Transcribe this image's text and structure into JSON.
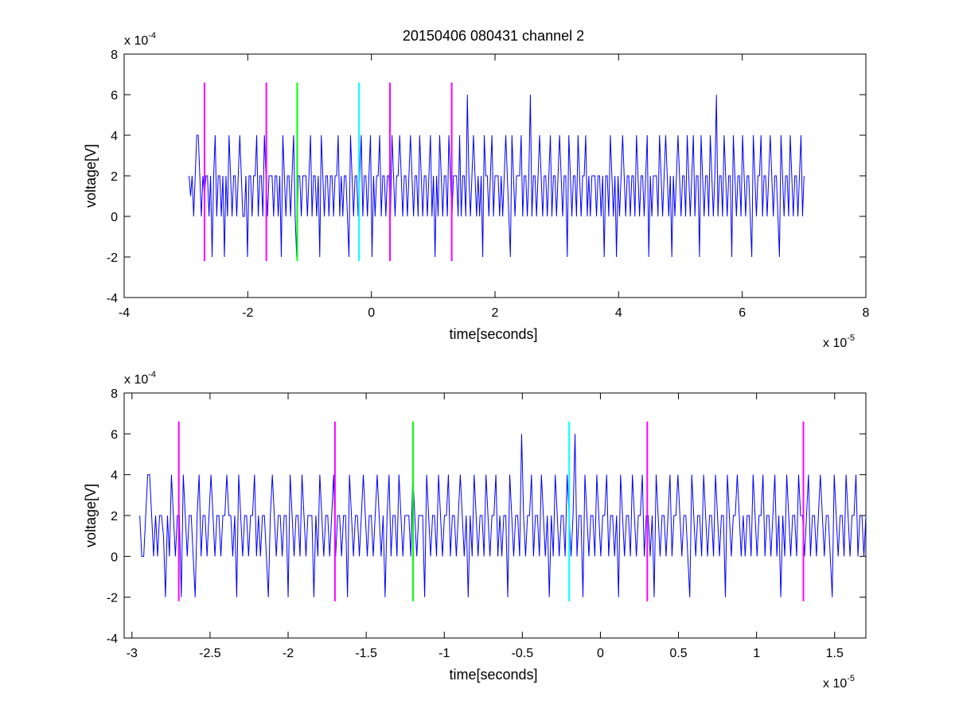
{
  "figure": {
    "title": "20150406 080431 channel 2",
    "background": "#ffffff"
  },
  "chart_data": [
    {
      "type": "line",
      "title": "20150406 080431 channel 2",
      "xlabel": "time[seconds]",
      "ylabel": "voltage[V]",
      "x_exponent_label": "x 10",
      "x_exponent": "-5",
      "y_exponent_label": "x 10",
      "y_exponent": "-4",
      "xlim": [
        -4,
        8
      ],
      "ylim": [
        -4,
        8
      ],
      "xticks": [
        -4,
        -2,
        0,
        2,
        4,
        6,
        8
      ],
      "xtick_labels": [
        "-4",
        "-2",
        "0",
        "2",
        "4",
        "6",
        "8"
      ],
      "yticks": [
        -4,
        -2,
        0,
        2,
        4,
        6,
        8
      ],
      "ytick_labels": [
        "-4",
        "-2",
        "0",
        "2",
        "4",
        "6",
        "8"
      ],
      "grid": false,
      "series": [
        {
          "color": "#0000ff",
          "x_start": -2.95,
          "x_end": 7.0,
          "values": [
            2,
            1,
            2,
            0,
            2,
            4,
            4,
            2,
            0,
            2,
            1,
            2,
            2,
            0,
            2,
            -2,
            2,
            4,
            0,
            2,
            2,
            0,
            2,
            -2,
            2,
            0,
            4,
            2,
            0,
            2,
            2,
            0,
            2,
            4,
            2,
            0,
            0,
            2,
            -2,
            2,
            2,
            0,
            2,
            2,
            4,
            0,
            2,
            2,
            0,
            4,
            2,
            0,
            2,
            2,
            2,
            0,
            2,
            2,
            0,
            2,
            -2,
            4,
            2,
            0,
            2,
            2,
            0,
            2,
            4,
            0,
            -2,
            2,
            2,
            0,
            2,
            2,
            2,
            0,
            2,
            4,
            0,
            2,
            2,
            0,
            2,
            -2,
            4,
            2,
            0,
            2,
            2,
            0,
            2,
            2,
            0,
            2,
            2,
            4,
            0,
            2,
            0,
            2,
            2,
            0,
            -2,
            4,
            2,
            0,
            2,
            2,
            0,
            2,
            4,
            0,
            2,
            2,
            0,
            2,
            4,
            -2,
            2,
            0,
            2,
            2,
            4,
            0,
            2,
            2,
            0,
            2,
            2,
            0,
            4,
            2,
            0,
            2,
            2,
            4,
            2,
            0,
            2,
            2,
            0,
            2,
            4,
            2,
            0,
            2,
            2,
            0,
            4,
            2,
            0,
            2,
            2,
            0,
            2,
            4,
            0,
            2,
            -2,
            2,
            0,
            4,
            2,
            0,
            2,
            2,
            0,
            4,
            2,
            0,
            2,
            2,
            2,
            0,
            4,
            0,
            2,
            2,
            0,
            6,
            2,
            0,
            2,
            4,
            2,
            0,
            2,
            0,
            2,
            -2,
            4,
            2,
            2,
            0,
            2,
            4,
            0,
            2,
            2,
            2,
            0,
            2,
            0,
            2,
            4,
            2,
            0,
            -2,
            4,
            2,
            0,
            2,
            2,
            2,
            4,
            0,
            2,
            2,
            0,
            2,
            6,
            0,
            2,
            2,
            0,
            2,
            4,
            2,
            0,
            2,
            2,
            0,
            2,
            4,
            0,
            2,
            2,
            0,
            2,
            4,
            2,
            0,
            2,
            2,
            -2,
            4,
            2,
            0,
            2,
            2,
            0,
            4,
            2,
            0,
            2,
            2,
            4,
            0,
            2,
            0,
            2,
            2,
            2,
            0,
            2,
            2,
            0,
            2,
            -2,
            2,
            2,
            0,
            4,
            2,
            0,
            2,
            -2,
            2,
            0,
            2,
            4,
            2,
            0,
            2,
            2,
            0,
            2,
            2,
            0,
            4,
            2,
            0,
            2,
            2,
            0,
            2,
            4,
            -2,
            2,
            0,
            2,
            2,
            2,
            0,
            4,
            2,
            0,
            2,
            4,
            2,
            0,
            2,
            -2,
            2,
            0,
            2,
            4,
            2,
            0,
            2,
            2,
            0,
            4,
            2,
            0,
            2,
            4,
            0,
            2,
            2,
            -2,
            4,
            2,
            0,
            2,
            2,
            0,
            4,
            2,
            0,
            2,
            6,
            0,
            2,
            2,
            0,
            4,
            2,
            0,
            2,
            2,
            -2,
            4,
            2,
            0,
            2,
            2,
            0,
            4,
            2,
            0,
            2,
            2,
            0,
            -2,
            4,
            2,
            0,
            2,
            2,
            4,
            0,
            2,
            2,
            0,
            2,
            4,
            2,
            0,
            2,
            2,
            0,
            -2,
            4,
            2,
            0,
            2,
            2,
            0,
            4,
            2,
            0,
            2,
            2,
            0,
            2,
            4,
            0,
            2
          ]
        }
      ],
      "markers": [
        {
          "x": -2.7,
          "color": "#ff00ff"
        },
        {
          "x": -1.7,
          "color": "#ff00ff"
        },
        {
          "x": -1.2,
          "color": "#00ff00"
        },
        {
          "x": -0.2,
          "color": "#00ffff"
        },
        {
          "x": 0.3,
          "color": "#ff00ff"
        },
        {
          "x": 1.3,
          "color": "#ff00ff"
        }
      ],
      "marker_y_range": [
        -2.2,
        6.6
      ]
    },
    {
      "type": "line",
      "title": "",
      "xlabel": "time[seconds]",
      "ylabel": "voltage[V]",
      "x_exponent_label": "x 10",
      "x_exponent": "-5",
      "y_exponent_label": "x 10",
      "y_exponent": "-4",
      "xlim": [
        -3.05,
        1.7
      ],
      "ylim": [
        -4,
        8
      ],
      "xticks": [
        -3,
        -2.5,
        -2,
        -1.5,
        -1,
        -0.5,
        0,
        0.5,
        1,
        1.5
      ],
      "xtick_labels": [
        "-3",
        "-2.5",
        "-2",
        "-1.5",
        "-1",
        "-0.5",
        "0",
        "0.5",
        "1",
        "1.5"
      ],
      "yticks": [
        -4,
        -2,
        0,
        2,
        4,
        6,
        8
      ],
      "ytick_labels": [
        "-4",
        "-2",
        "0",
        "2",
        "4",
        "6",
        "8"
      ],
      "grid": false,
      "series": [
        {
          "color": "#0000ff",
          "x_start": -2.95,
          "x_end": 1.7,
          "values": [
            2,
            0,
            0,
            2,
            4,
            4,
            2,
            0,
            2,
            0,
            2,
            2,
            1,
            -2,
            2,
            0,
            4,
            2,
            0,
            2,
            2,
            -2,
            4,
            2,
            0,
            2,
            2,
            0,
            -2,
            2,
            4,
            0,
            2,
            2,
            0,
            2,
            4,
            2,
            0,
            2,
            2,
            0,
            2,
            2,
            4,
            2,
            2,
            0,
            2,
            -2,
            4,
            2,
            0,
            2,
            2,
            0,
            2,
            2,
            4,
            0,
            2,
            0,
            2,
            2,
            0,
            -2,
            2,
            4,
            2,
            0,
            2,
            2,
            0,
            2,
            2,
            -2,
            4,
            2,
            0,
            2,
            2,
            0,
            4,
            2,
            0,
            2,
            2,
            2,
            -2,
            2,
            0,
            4,
            2,
            0,
            2,
            2,
            0,
            2,
            4,
            0,
            2,
            2,
            0,
            2,
            2,
            -2,
            4,
            2,
            0,
            2,
            2,
            0,
            2,
            4,
            2,
            0,
            2,
            2,
            0,
            2,
            4,
            2,
            0,
            2,
            -2,
            2,
            4,
            0,
            2,
            2,
            0,
            4,
            2,
            0,
            2,
            2,
            2,
            0,
            4,
            2,
            0,
            2,
            2,
            2,
            -2,
            4,
            2,
            0,
            2,
            2,
            0,
            4,
            2,
            0,
            2,
            2,
            4,
            0,
            2,
            2,
            0,
            2,
            4,
            2,
            0,
            2,
            -2,
            2,
            0,
            4,
            2,
            0,
            2,
            2,
            0,
            4,
            2,
            0,
            2,
            2,
            4,
            0,
            2,
            0,
            2,
            2,
            -2,
            4,
            2,
            0,
            2,
            2,
            0,
            6,
            2,
            0,
            2,
            2,
            4,
            0,
            2,
            2,
            0,
            4,
            2,
            0,
            2,
            -2,
            2,
            0,
            4,
            2,
            0,
            2,
            2,
            0,
            4,
            2,
            0,
            2,
            6,
            0,
            2,
            2,
            -2,
            4,
            2,
            0,
            2,
            2,
            0,
            4,
            2,
            0,
            2,
            2,
            4,
            0,
            2,
            2,
            0,
            2,
            -2,
            4,
            2,
            0,
            2,
            2,
            0,
            4,
            2,
            0,
            2,
            2,
            4,
            0,
            2,
            2,
            0,
            2,
            -2,
            4,
            2,
            0,
            2,
            2,
            0,
            2,
            4,
            0,
            2,
            2,
            4,
            2,
            0,
            2,
            2,
            0,
            -2,
            4,
            2,
            0,
            2,
            2,
            0,
            4,
            2,
            0,
            2,
            2,
            0,
            4,
            2,
            0,
            2,
            2,
            -2,
            4,
            2,
            0,
            2,
            2,
            4,
            2,
            0,
            2,
            0,
            2,
            2,
            0,
            4,
            2,
            0,
            2,
            2,
            4,
            0,
            2,
            2,
            0,
            2,
            4,
            0,
            2,
            -2,
            2,
            0,
            4,
            2,
            0,
            2,
            2,
            0,
            4,
            2,
            2,
            0,
            2,
            4,
            0,
            2,
            2,
            0,
            2,
            4,
            2,
            0,
            2,
            2,
            0,
            -2,
            4,
            2,
            0,
            2,
            2,
            0,
            4,
            2,
            0,
            2,
            2,
            4,
            0,
            2,
            2,
            0,
            2
          ]
        }
      ],
      "markers": [
        {
          "x": -2.7,
          "color": "#ff00ff"
        },
        {
          "x": -1.7,
          "color": "#ff00ff"
        },
        {
          "x": -1.2,
          "color": "#00ff00"
        },
        {
          "x": -0.2,
          "color": "#00ffff"
        },
        {
          "x": 0.3,
          "color": "#ff00ff"
        },
        {
          "x": 1.3,
          "color": "#ff00ff"
        }
      ],
      "marker_y_range": [
        -2.2,
        6.6
      ]
    }
  ]
}
